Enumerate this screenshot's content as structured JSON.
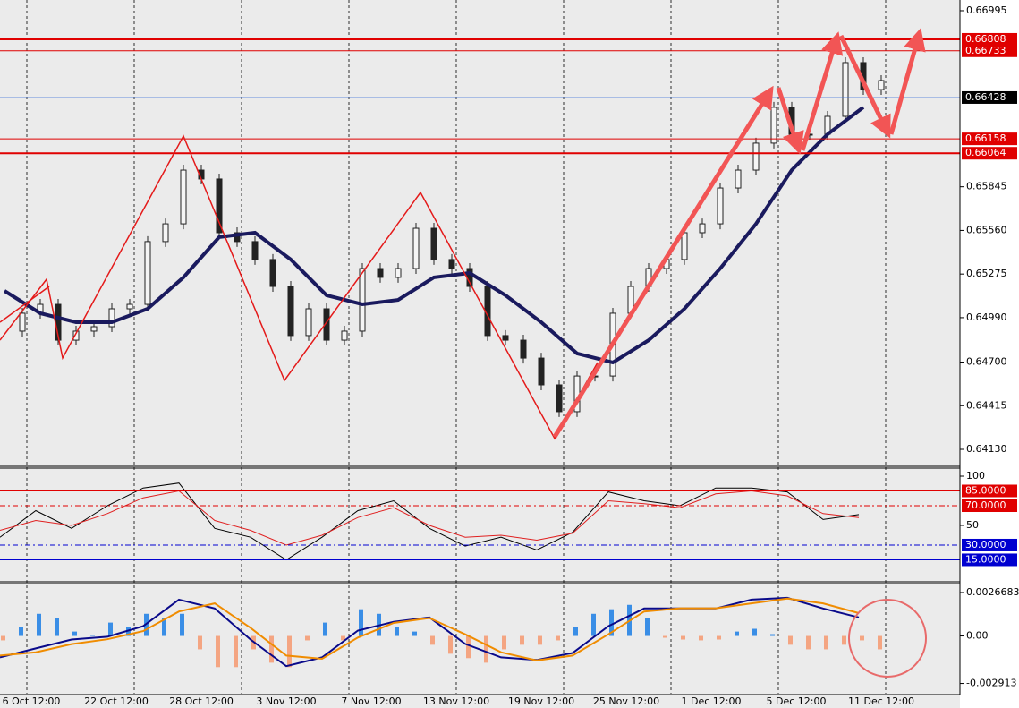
{
  "chart_data": [
    {
      "type": "candlestick",
      "close": [
        0.64902,
        0.65019,
        0.65077,
        0.64843,
        0.64902,
        0.64931,
        0.65048,
        0.65077,
        0.65487,
        0.65603,
        0.65954,
        0.65896,
        0.65545,
        0.65487,
        0.6537,
        0.65194,
        0.64873,
        0.65048,
        0.64843,
        0.64902,
        0.65311,
        0.65253,
        0.65311,
        0.65574,
        0.6537,
        0.65311,
        0.65194,
        0.64873,
        0.64843,
        0.64726,
        0.64551,
        0.64376,
        0.64609,
        0.64609,
        0.65019,
        0.65194,
        0.65311,
        0.6537,
        0.65545,
        0.65603,
        0.65837,
        0.65954,
        0.6613,
        0.66364,
        0.66188,
        0.66188,
        0.66305,
        0.66656,
        0.6648,
        0.66539
      ],
      "ma": [
        0.65165,
        0.65019,
        0.6496,
        0.6496,
        0.65048,
        0.65253,
        0.65516,
        0.65545,
        0.6537,
        0.65136,
        0.65077,
        0.65106,
        0.65253,
        0.65282,
        0.65136,
        0.6496,
        0.64756,
        0.64697,
        0.64843,
        0.65048,
        0.65311,
        0.65603,
        0.65954,
        0.66188,
        0.66364
      ],
      "ma_color": "#1a1a5e",
      "ylim": [
        0.64019,
        0.67065
      ],
      "yticks": [
        0.66995,
        0.65845,
        {
          "value": 0.6556,
          "label": "0.65560"
        },
        0.65275,
        {
          "value": 0.6499,
          "label": "0.64990"
        },
        {
          "value": 0.647,
          "label": "0.64700"
        },
        0.64415,
        {
          "value": 0.6413,
          "label": "0.64130"
        }
      ],
      "levels": [
        {
          "value": 0.66808,
          "color": "#e00000",
          "width": 2
        },
        {
          "value": 0.66733,
          "color": "#e00000",
          "width": 1
        },
        {
          "value": 0.66428,
          "color": "#3a6fd8",
          "width": 0.7,
          "label_bg": "#000000"
        },
        {
          "value": 0.66158,
          "color": "#e00000",
          "width": 1
        },
        {
          "value": 0.66064,
          "color": "#e00000",
          "width": 2
        }
      ],
      "x_labels": [
        "6 Oct 12:00",
        "22 Oct 12:00",
        "28 Oct 12:00",
        "3 Nov 12:00",
        "7 Nov 12:00",
        "13 Nov 12:00",
        "19 Nov 12:00",
        "25 Nov 12:00",
        "1 Dec 12:00",
        "5 Dec 12:00",
        "11 Dec 12:00"
      ]
    },
    {
      "type": "oscillator",
      "series": [
        {
          "color": "#000000",
          "values": [
            38,
            65,
            47,
            70,
            88,
            93,
            47,
            38,
            15,
            38,
            65,
            75,
            47,
            29,
            38,
            25,
            43,
            84,
            75,
            70,
            88,
            88,
            84,
            56,
            61
          ]
        },
        {
          "color": "#e02020",
          "values": [
            45,
            55,
            50,
            62,
            78,
            85,
            55,
            45,
            30,
            40,
            58,
            68,
            50,
            38,
            40,
            35,
            42,
            75,
            72,
            68,
            82,
            85,
            80,
            62,
            58
          ]
        }
      ],
      "ylim": [
        -5.5,
        108.2
      ],
      "yticks": [
        100,
        50
      ],
      "levels": [
        {
          "value": 85,
          "label": "85.0000",
          "color": "#e00000",
          "dash": "",
          "label_bg": "#e00000"
        },
        {
          "value": 70,
          "label": "70.0000",
          "color": "#e00000",
          "dash": "6 3 2 3",
          "label_bg": "#e00000"
        },
        {
          "value": 30,
          "label": "30.0000",
          "color": "#0000d0",
          "dash": "6 3 2 3",
          "label_bg": "#0000d0"
        },
        {
          "value": 15,
          "label": "15.0000",
          "color": "#0000d0",
          "dash": "",
          "label_bg": "#0000d0"
        }
      ]
    },
    {
      "type": "macd",
      "histogram": [
        -0.00027,
        0.00054,
        0.00136,
        0.00109,
        0.00027,
        0,
        0.00082,
        0.00054,
        0.00136,
        0.00109,
        0.00136,
        -0.00082,
        -0.00191,
        -0.00191,
        -0.00082,
        -0.00164,
        -0.00191,
        -0.00027,
        0.00082,
        -0.00027,
        0.00164,
        0.00136,
        0.00054,
        0.00027,
        -0.00054,
        -0.00109,
        -0.00136,
        -0.00164,
        -0.00082,
        -0.00054,
        -0.00054,
        -0.00027,
        0.00054,
        0.00136,
        0.00164,
        0.00191,
        0.00109,
        -0.00011,
        -0.00022,
        -0.00027,
        -0.00022,
        0.00027,
        0.00044,
        0.00011,
        -0.00054,
        -0.00082,
        -0.00082,
        -0.00054,
        -0.00027,
        -0.00082
      ],
      "positive_color": "#3a8ee6",
      "negative_color": "#f4a582",
      "series": [
        {
          "color": "#0a0a8a",
          "values": [
            -0.00131,
            -0.00076,
            -0.00022,
            -5e-05,
            0.0006,
            0.00223,
            0.00169,
            -0.00022,
            -0.00185,
            -0.00131,
            0.00033,
            0.00087,
            0.00114,
            -0.00049,
            -0.00131,
            -0.00147,
            -0.00104,
            0.0006,
            0.00169,
            0.00169,
            0.00169,
            0.00223,
            0.00234,
            0.00169,
            0.00114
          ]
        },
        {
          "color": "#f08c00",
          "values": [
            -0.0012,
            -0.001,
            -0.0005,
            -0.0002,
            0.0003,
            0.0015,
            0.002,
            0.0005,
            -0.0012,
            -0.0014,
            -0.0001,
            0.0008,
            0.0011,
            0.0001,
            -0.001,
            -0.0015,
            -0.0012,
            0.0001,
            0.0015,
            0.0017,
            0.0017,
            0.002,
            0.0023,
            0.002,
            0.0014
          ]
        }
      ],
      "ylim": [
        -0.003597,
        0.0032155
      ],
      "yticks": [
        0.0026683,
        {
          "value": 0,
          "label": "0.00"
        },
        -0.002913
      ]
    }
  ]
}
